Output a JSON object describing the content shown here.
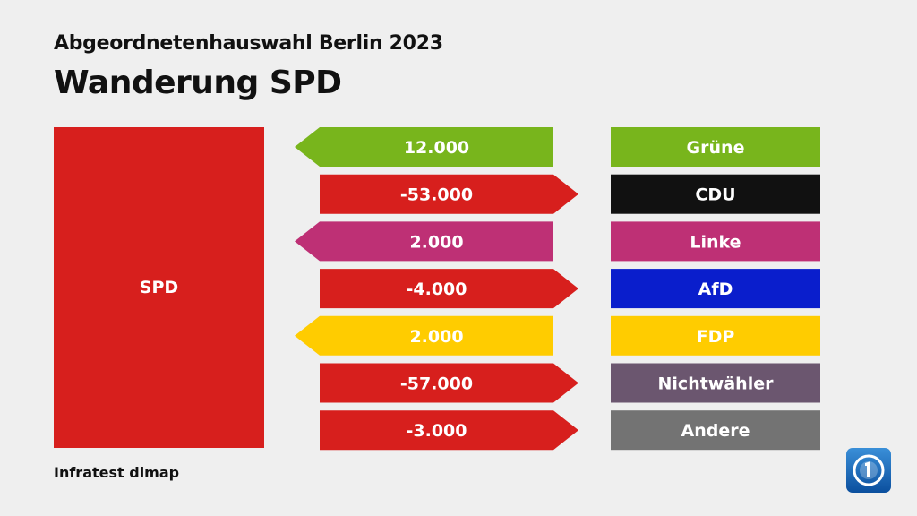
{
  "header": {
    "subtitle": "Abgeordnetenhauswahl Berlin 2023",
    "title": "Wanderung SPD"
  },
  "party": {
    "label": "SPD",
    "color": "#d71f1d"
  },
  "source": "Infratest dimap",
  "logo": {
    "icon": "tagesschau-logo-icon"
  },
  "chart_data": {
    "type": "bar",
    "categories": [
      "Grüne",
      "CDU",
      "Linke",
      "AfD",
      "FDP",
      "Nichtwähler",
      "Andere"
    ],
    "values": [
      12000,
      -53000,
      2000,
      -4000,
      2000,
      -57000,
      -3000
    ],
    "value_labels": [
      "12.000",
      "-53.000",
      "2.000",
      "-4.000",
      "2.000",
      "-57.000",
      "-3.000"
    ],
    "category_colors": [
      "#78b51c",
      "#111111",
      "#be3075",
      "#0a1ecc",
      "#ffcc00",
      "#6b566f",
      "#737373"
    ],
    "negative_color": "#d71f1d"
  }
}
